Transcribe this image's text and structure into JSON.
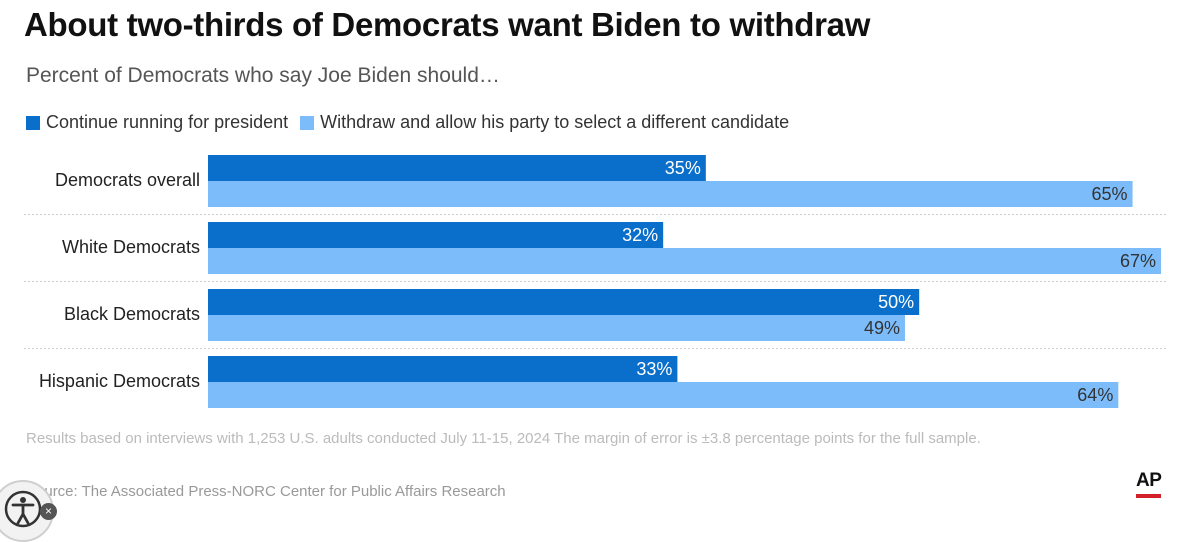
{
  "title": "About two-thirds of Democrats want Biden to withdraw",
  "subtitle": "Percent of Democrats who say Joe Biden should…",
  "legend": [
    {
      "label": "Continue running for president",
      "color": "#0a6ecb"
    },
    {
      "label": "Withdraw and allow his party to select a different candidate",
      "color": "#7cbcfa"
    }
  ],
  "chart_data": {
    "type": "bar",
    "orientation": "horizontal",
    "categories": [
      "Democrats overall",
      "White Democrats",
      "Black Democrats",
      "Hispanic Democrats"
    ],
    "series": [
      {
        "name": "Continue running for president",
        "values": [
          35,
          32,
          50,
          33
        ],
        "color": "#0a6ecb",
        "label_color": "#ffffff"
      },
      {
        "name": "Withdraw and allow his party to select a different candidate",
        "values": [
          65,
          67,
          49,
          64
        ],
        "color": "#7cbcfa",
        "label_color": "#333333"
      }
    ],
    "value_suffix": "%",
    "xlim": [
      0,
      67
    ],
    "legend_position": "top-left",
    "grid": false
  },
  "note": "Results based on interviews with 1,253 U.S. adults conducted July 11-15, 2024 The margin of error is ±3.8 percentage points for the full sample.",
  "source": "Source: The Associated Press-NORC Center for Public Affairs Research",
  "logo": "AP",
  "accessibility_close": "×"
}
